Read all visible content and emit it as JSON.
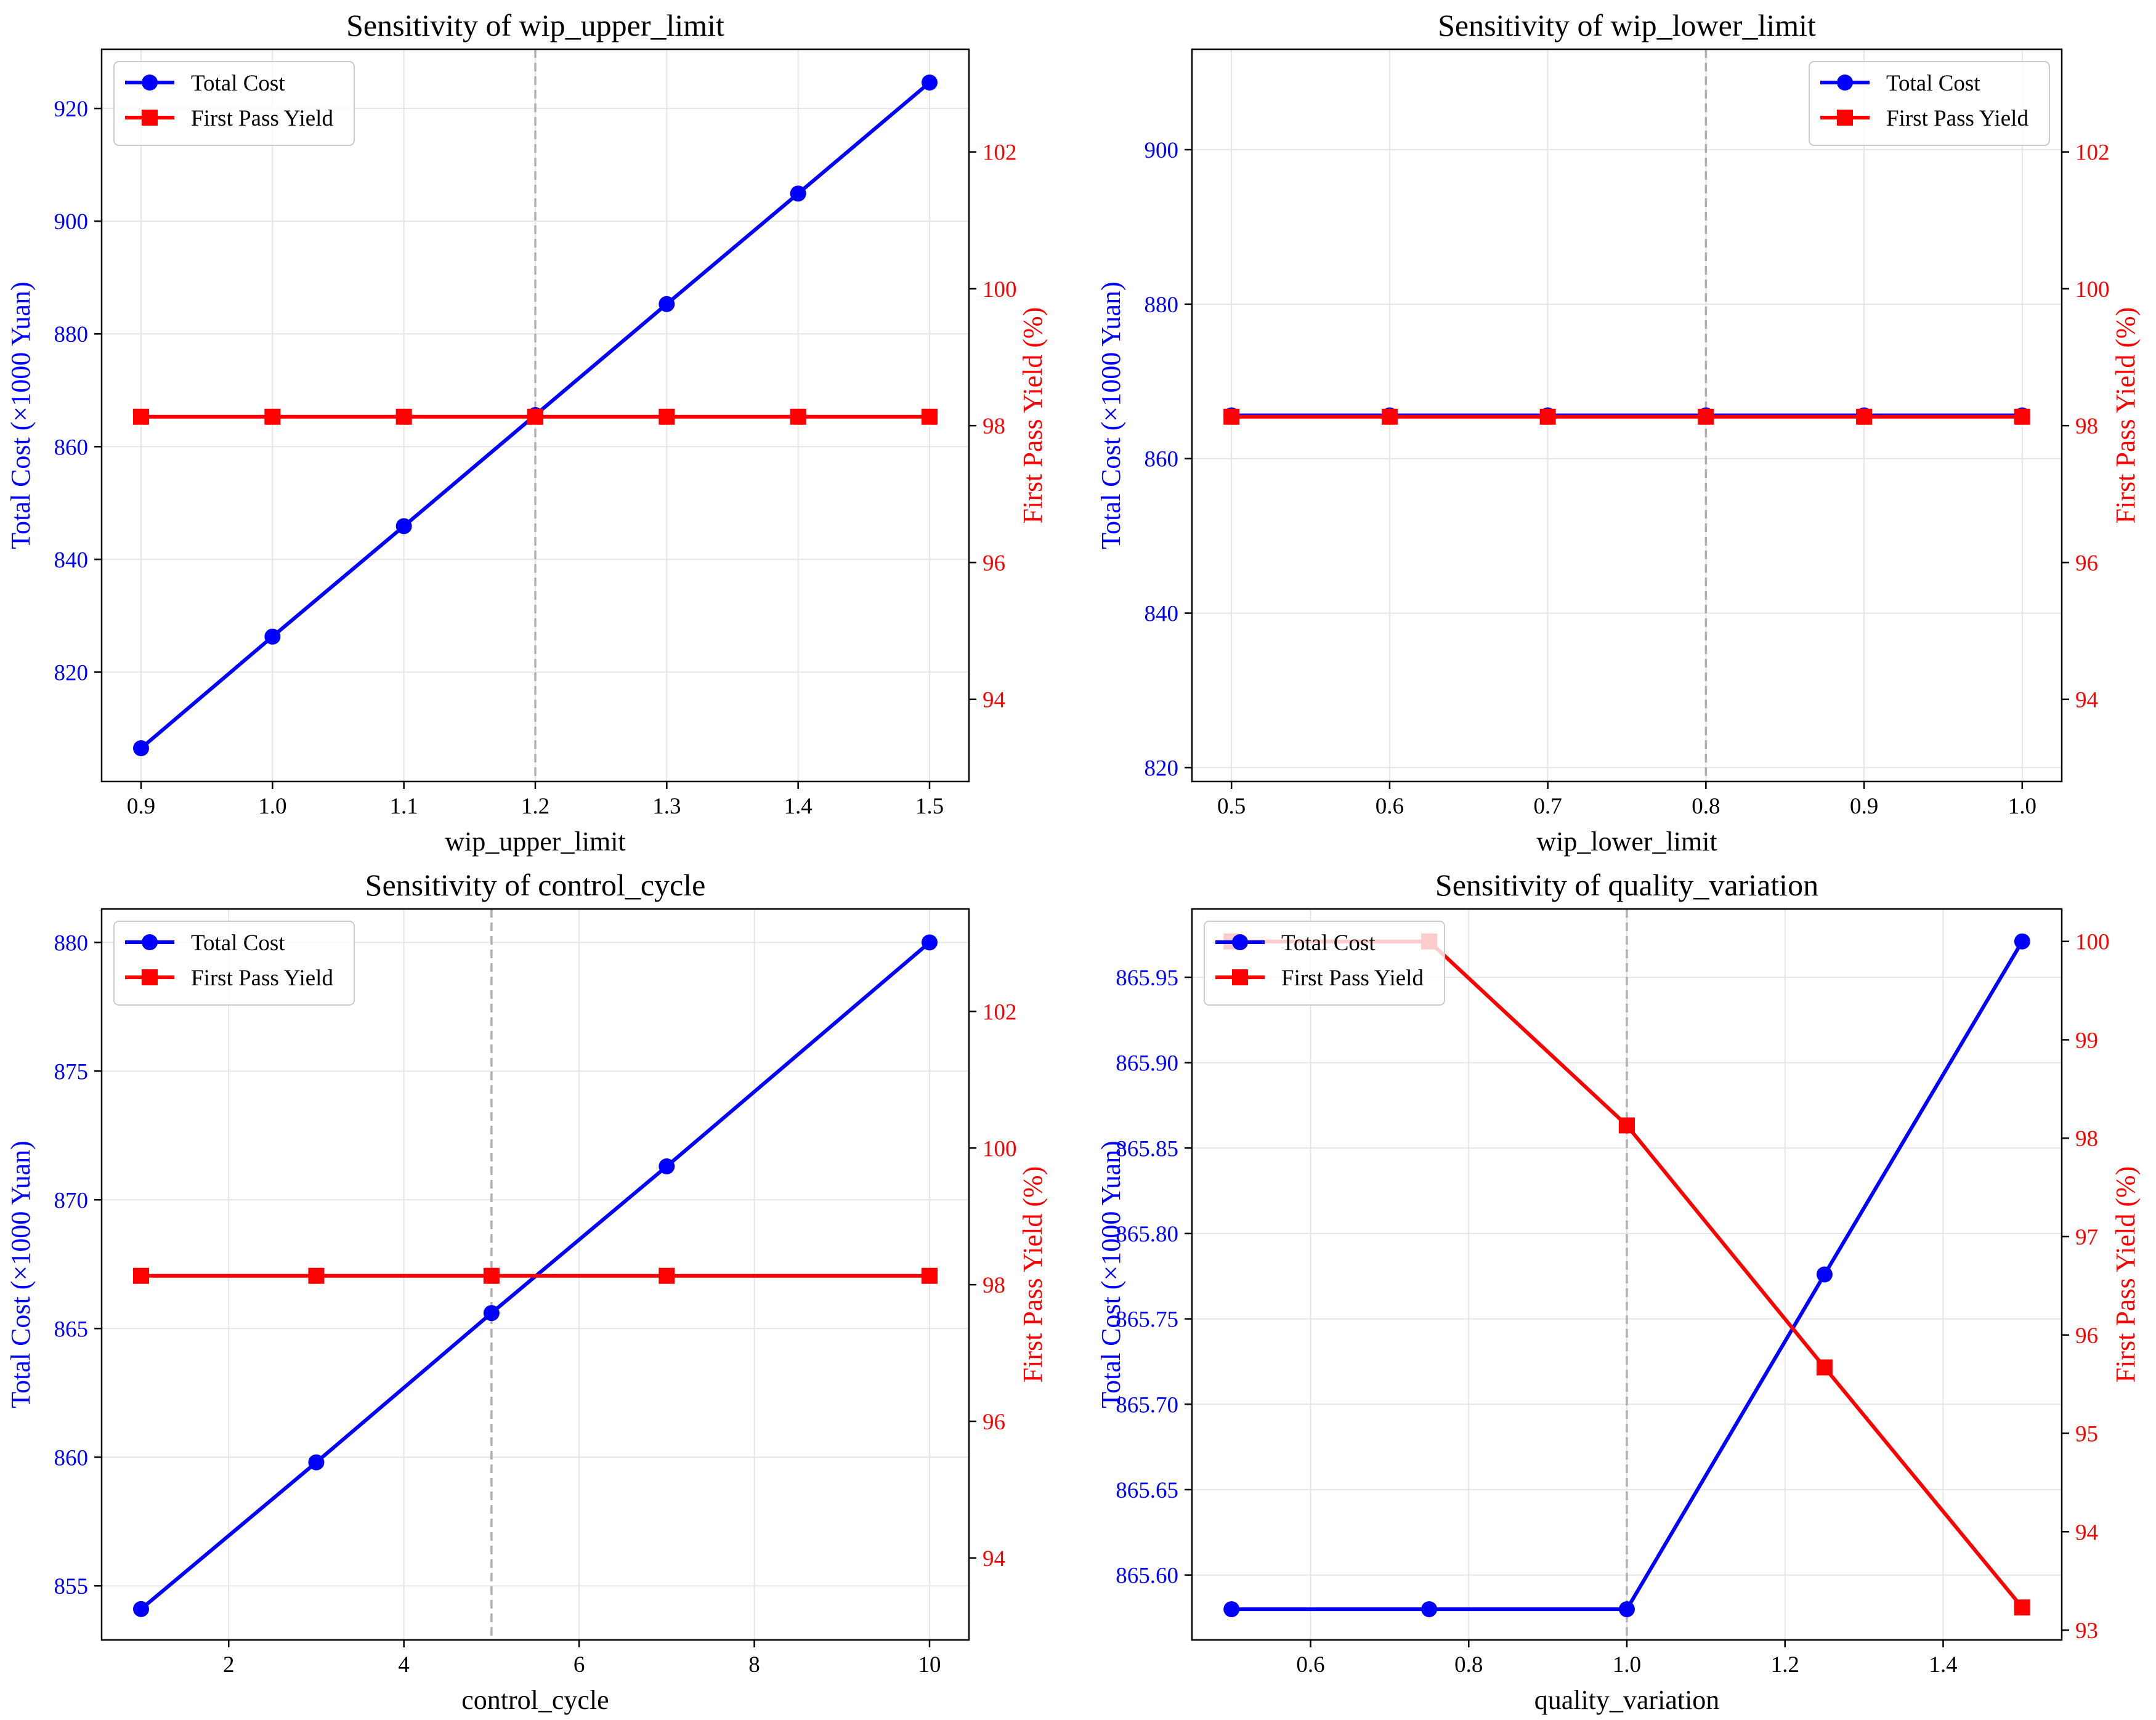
{
  "figure": {
    "colors": {
      "cost": "#0000ff",
      "yield": "#ff0000",
      "grid": "#e6e6e6",
      "ref_line": "#b0b0b0"
    },
    "legend_labels": [
      "Total Cost",
      "First Pass Yield"
    ]
  },
  "chart_data": [
    {
      "type": "line",
      "title": "Sensitivity of wip_upper_limit",
      "xlabel": "wip_upper_limit",
      "ylabel_left": "Total Cost (×1000 Yuan)",
      "ylabel_right": "First Pass Yield (%)",
      "x": [
        0.9,
        1.0,
        1.1,
        1.2,
        1.3,
        1.4,
        1.5
      ],
      "series": [
        {
          "name": "Total Cost",
          "axis": "left",
          "marker": "circle",
          "values": [
            806.5,
            826.3,
            845.9,
            865.6,
            885.3,
            904.9,
            924.6
          ]
        },
        {
          "name": "First Pass Yield",
          "axis": "right",
          "marker": "square",
          "values": [
            98.13,
            98.13,
            98.13,
            98.13,
            98.13,
            98.13,
            98.13
          ]
        }
      ],
      "xlim": [
        0.87,
        1.53
      ],
      "ylim_left": [
        800.6,
        930.5
      ],
      "ylim_right": [
        92.8,
        103.5
      ],
      "xticks": [
        0.9,
        1.0,
        1.1,
        1.2,
        1.3,
        1.4,
        1.5
      ],
      "xtick_labels": [
        "0.9",
        "1.0",
        "1.1",
        "1.2",
        "1.3",
        "1.4",
        "1.5"
      ],
      "yticks_left": [
        820,
        840,
        860,
        880,
        900,
        920
      ],
      "yticks_right": [
        94,
        96,
        98,
        100,
        102
      ],
      "reference_x": 1.2,
      "legend": "top-left"
    },
    {
      "type": "line",
      "title": "Sensitivity of wip_lower_limit",
      "xlabel": "wip_lower_limit",
      "ylabel_left": "Total Cost (×1000 Yuan)",
      "ylabel_right": "First Pass Yield (%)",
      "x": [
        0.5,
        0.6,
        0.7,
        0.8,
        0.9,
        1.0
      ],
      "series": [
        {
          "name": "Total Cost",
          "axis": "left",
          "marker": "circle",
          "values": [
            865.6,
            865.6,
            865.6,
            865.6,
            865.6,
            865.6
          ]
        },
        {
          "name": "First Pass Yield",
          "axis": "right",
          "marker": "square",
          "values": [
            98.13,
            98.13,
            98.13,
            98.13,
            98.13,
            98.13
          ]
        }
      ],
      "xlim": [
        0.475,
        1.025
      ],
      "ylim_left": [
        818.2,
        913.0
      ],
      "ylim_right": [
        92.8,
        103.5
      ],
      "xticks": [
        0.5,
        0.6,
        0.7,
        0.8,
        0.9,
        1.0
      ],
      "xtick_labels": [
        "0.5",
        "0.6",
        "0.7",
        "0.8",
        "0.9",
        "1.0"
      ],
      "yticks_left": [
        820,
        840,
        860,
        880,
        900
      ],
      "yticks_right": [
        94,
        96,
        98,
        100,
        102
      ],
      "reference_x": 0.8,
      "legend": "top-right"
    },
    {
      "type": "line",
      "title": "Sensitivity of control_cycle",
      "xlabel": "control_cycle",
      "ylabel_left": "Total Cost (×1000 Yuan)",
      "ylabel_right": "First Pass Yield (%)",
      "x": [
        1,
        3,
        5,
        7,
        10
      ],
      "series": [
        {
          "name": "Total Cost",
          "axis": "left",
          "marker": "circle",
          "values": [
            854.1,
            859.8,
            865.6,
            871.3,
            880.0
          ]
        },
        {
          "name": "First Pass Yield",
          "axis": "right",
          "marker": "square",
          "values": [
            98.13,
            98.13,
            98.13,
            98.13,
            98.13
          ]
        }
      ],
      "xlim": [
        0.55,
        10.45
      ],
      "ylim_left": [
        852.9,
        881.3
      ],
      "ylim_right": [
        92.8,
        103.5
      ],
      "xticks": [
        2,
        4,
        6,
        8,
        10
      ],
      "xtick_labels": [
        "2",
        "4",
        "6",
        "8",
        "10"
      ],
      "yticks_left": [
        855,
        860,
        865,
        870,
        875,
        880
      ],
      "yticks_right": [
        94,
        96,
        98,
        100,
        102
      ],
      "reference_x": 5,
      "legend": "top-left"
    },
    {
      "type": "line",
      "title": "Sensitivity of quality_variation",
      "xlabel": "quality_variation",
      "ylabel_left": "Total Cost (×1000 Yuan)",
      "ylabel_right": "First Pass Yield (%)",
      "x": [
        0.5,
        0.75,
        1.0,
        1.25,
        1.5
      ],
      "series": [
        {
          "name": "Total Cost",
          "axis": "left",
          "marker": "circle",
          "values": [
            865.58,
            865.58,
            865.58,
            865.776,
            865.971
          ]
        },
        {
          "name": "First Pass Yield",
          "axis": "right",
          "marker": "square",
          "values": [
            100.0,
            100.0,
            98.13,
            95.67,
            93.23
          ]
        }
      ],
      "xlim": [
        0.45,
        1.55
      ],
      "ylim_left": [
        865.562,
        865.99
      ],
      "ylim_right": [
        92.9,
        100.33
      ],
      "xticks": [
        0.6,
        0.8,
        1.0,
        1.2,
        1.4
      ],
      "xtick_labels": [
        "0.6",
        "0.8",
        "1.0",
        "1.2",
        "1.4"
      ],
      "yticks_left": [
        865.6,
        865.65,
        865.7,
        865.75,
        865.8,
        865.85,
        865.9,
        865.95
      ],
      "ytick_labels_left": [
        "865.60",
        "865.65",
        "865.70",
        "865.75",
        "865.80",
        "865.85",
        "865.90",
        "865.95"
      ],
      "yticks_right": [
        93,
        94,
        95,
        96,
        97,
        98,
        99,
        100
      ],
      "reference_x": 1.0,
      "legend": "top-left"
    }
  ]
}
